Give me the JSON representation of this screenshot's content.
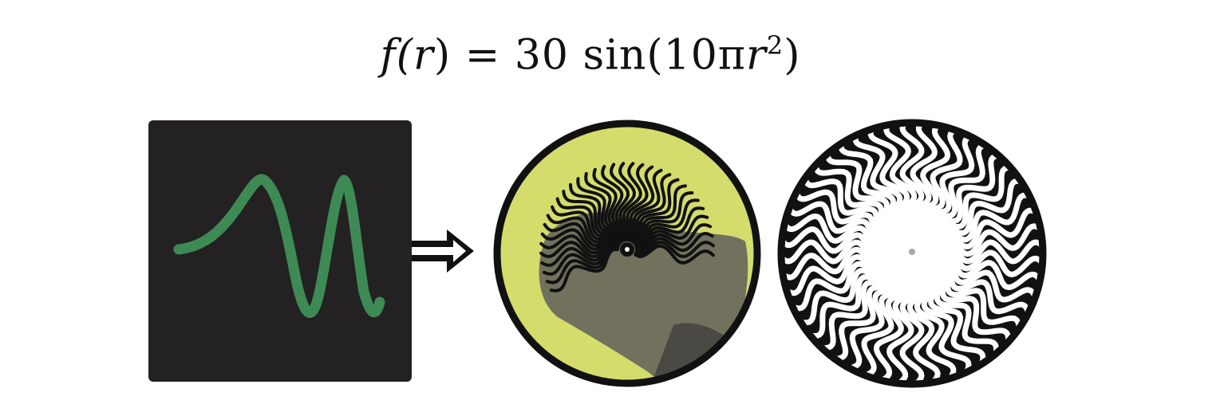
{
  "formula": {
    "prefix": "f(",
    "var": "r",
    "mid": ") = 30 sin(10π",
    "var2": "r",
    "exp": "2",
    "suffix": ")"
  },
  "colors": {
    "panel_bg": "#232122",
    "curve": "#3e8a55",
    "disc_bg": "#d4dc6c",
    "ring": "#111111"
  },
  "icons": {
    "transform_arrow": "double-arrow-right-icon"
  }
}
